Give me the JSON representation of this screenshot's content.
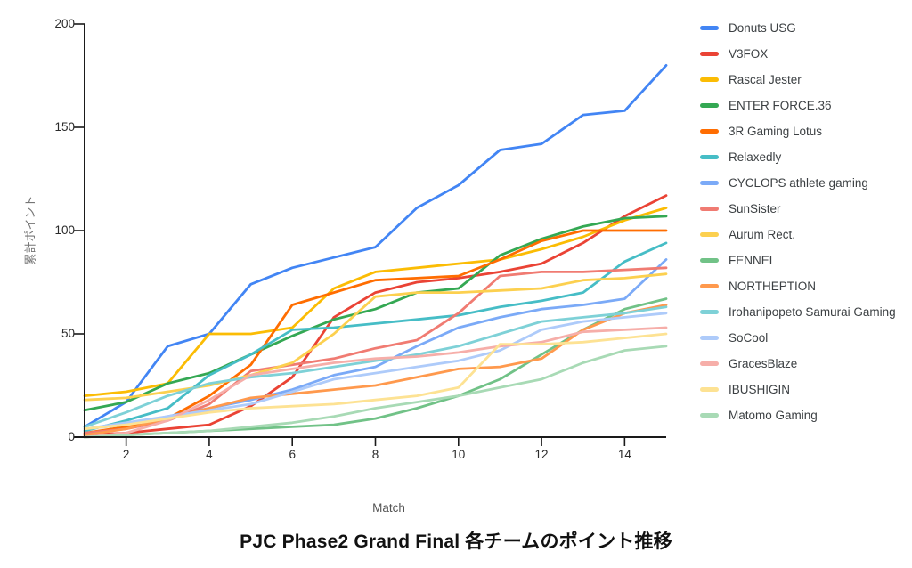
{
  "title": "PJC Phase2 Grand Final 各チームのポイント推移",
  "chart_data": {
    "type": "line",
    "title": "PJC Phase2 Grand Final 各チームのポイント推移",
    "xlabel": "Match",
    "ylabel": "累計ポイント",
    "xlim": [
      1,
      15
    ],
    "ylim": [
      0,
      200
    ],
    "xticks": [
      2,
      4,
      6,
      8,
      10,
      12,
      14
    ],
    "yticks": [
      0,
      50,
      100,
      150,
      200
    ],
    "grid": false,
    "legend_position": "right",
    "x": [
      1,
      2,
      3,
      4,
      5,
      6,
      7,
      8,
      9,
      10,
      11,
      12,
      13,
      14,
      15
    ],
    "series": [
      {
        "name": "Donuts USG",
        "color": "#4285F4",
        "values": [
          5,
          17,
          44,
          50,
          74,
          82,
          87,
          92,
          111,
          122,
          139,
          142,
          156,
          158,
          180
        ]
      },
      {
        "name": "V3FOX",
        "color": "#EA4335",
        "values": [
          1,
          2,
          4,
          6,
          15,
          29,
          58,
          70,
          75,
          77,
          80,
          84,
          94,
          107,
          117
        ]
      },
      {
        "name": "Rascal Jester",
        "color": "#FBBC04",
        "values": [
          20,
          22,
          26,
          50,
          50,
          53,
          72,
          80,
          82,
          84,
          86,
          91,
          97,
          105,
          111
        ]
      },
      {
        "name": "ENTER FORCE.36",
        "color": "#34A853",
        "values": [
          13,
          17,
          26,
          31,
          40,
          49,
          57,
          62,
          70,
          72,
          88,
          96,
          102,
          106,
          107
        ]
      },
      {
        "name": "3R Gaming Lotus",
        "color": "#FF6D01",
        "values": [
          2,
          5,
          9,
          20,
          35,
          64,
          70,
          76,
          77,
          78,
          86,
          95,
          100,
          100,
          100
        ]
      },
      {
        "name": "Relaxedly",
        "color": "#46BDC6",
        "values": [
          3,
          8,
          14,
          30,
          40,
          52,
          53,
          55,
          57,
          59,
          63,
          66,
          70,
          85,
          94
        ]
      },
      {
        "name": "CYCLOPS athlete gaming",
        "color": "#7BAAF7",
        "values": [
          4,
          6,
          10,
          14,
          18,
          23,
          30,
          34,
          44,
          53,
          58,
          62,
          64,
          67,
          86
        ]
      },
      {
        "name": "SunSister",
        "color": "#F07B72",
        "values": [
          2,
          4,
          8,
          16,
          32,
          35,
          38,
          43,
          47,
          60,
          78,
          80,
          80,
          81,
          82
        ]
      },
      {
        "name": "Aurum Rect.",
        "color": "#FCD04F",
        "values": [
          18,
          19,
          22,
          25,
          30,
          36,
          50,
          68,
          70,
          70,
          71,
          72,
          76,
          77,
          79
        ]
      },
      {
        "name": "FENNEL",
        "color": "#71C287",
        "values": [
          0,
          1,
          2,
          3,
          4,
          5,
          6,
          9,
          14,
          20,
          28,
          40,
          52,
          62,
          67
        ]
      },
      {
        "name": "NORTHEPTION",
        "color": "#FF994D",
        "values": [
          1,
          4,
          9,
          14,
          19,
          21,
          23,
          25,
          29,
          33,
          34,
          38,
          52,
          60,
          64
        ]
      },
      {
        "name": "Irohanipopeto Samurai Gaming",
        "color": "#7ED1D7",
        "values": [
          5,
          12,
          20,
          26,
          29,
          31,
          34,
          37,
          40,
          44,
          50,
          56,
          58,
          60,
          63
        ]
      },
      {
        "name": "SoCool",
        "color": "#AECBFA",
        "values": [
          4,
          7,
          10,
          13,
          16,
          22,
          28,
          31,
          34,
          37,
          42,
          52,
          56,
          58,
          60
        ]
      },
      {
        "name": "GracesBlaze",
        "color": "#F6AEA9",
        "values": [
          0,
          2,
          8,
          18,
          30,
          33,
          36,
          38,
          39,
          41,
          44,
          46,
          51,
          52,
          53
        ]
      },
      {
        "name": "IBUSHIGIN",
        "color": "#FDE293",
        "values": [
          4,
          6,
          9,
          12,
          14,
          15,
          16,
          18,
          20,
          24,
          45,
          45,
          46,
          48,
          50
        ]
      },
      {
        "name": "Matomo Gaming",
        "color": "#A8DAB5",
        "values": [
          0,
          1,
          2,
          3,
          5,
          7,
          10,
          14,
          17,
          20,
          24,
          28,
          36,
          42,
          44
        ]
      }
    ],
    "axis_color": "#1a1a1a",
    "tick_label_color": "#2b2b2b"
  }
}
